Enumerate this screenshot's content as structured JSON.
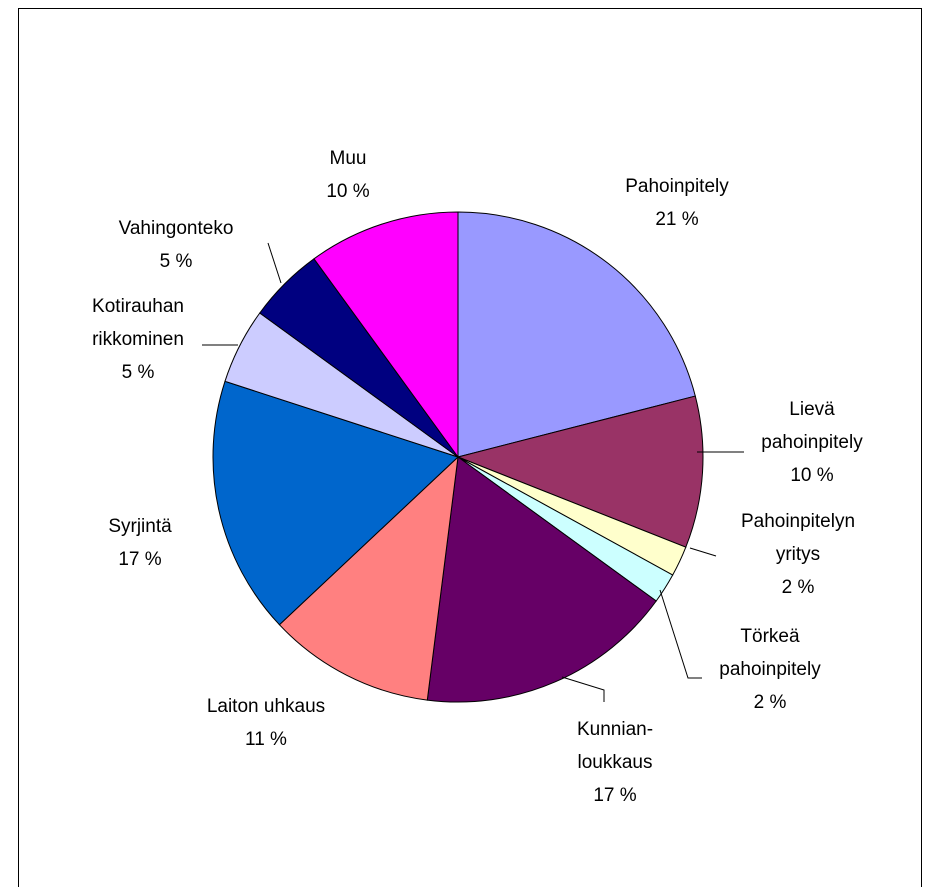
{
  "chart_data": {
    "type": "pie",
    "categories": [
      "Pahoinpitely",
      "Lievä\npahoinpitely",
      "Pahoinpitelyn\nyritys",
      "Törkeä\npahoinpitely",
      "Kunnian-\nloukkaus",
      "Laiton uhkaus",
      "Syrjintä",
      "Kotirauhan\nrikkominen",
      "Vahingonteko",
      "Muu"
    ],
    "values": [
      21,
      10,
      2,
      2,
      17,
      11,
      17,
      5,
      5,
      10
    ],
    "value_labels": [
      "21 %",
      "10 %",
      "2 %",
      "2 %",
      "17 %",
      "11 %",
      "17 %",
      "5 %",
      "5 %",
      "10 %"
    ],
    "colors": [
      "#9999ff",
      "#993366",
      "#ffffcc",
      "#ccffff",
      "#660066",
      "#ff8080",
      "#0066cc",
      "#ccccff",
      "#000080",
      "#ff00ff"
    ]
  }
}
